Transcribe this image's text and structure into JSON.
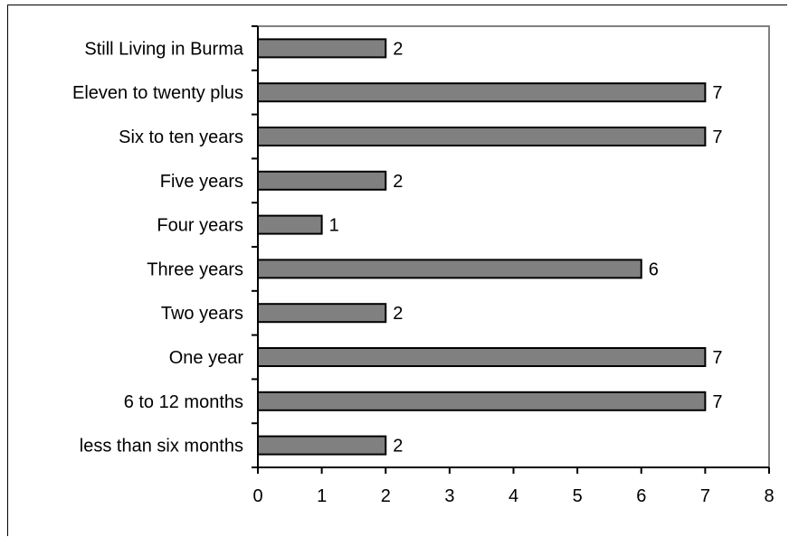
{
  "chart_data": {
    "type": "bar",
    "orientation": "horizontal",
    "title": "",
    "xlabel": "",
    "ylabel": "",
    "categories": [
      "Still Living in Burma",
      "Eleven to twenty plus",
      "Six to ten years",
      "Five years",
      "Four years",
      "Three years",
      "Two years",
      "One year",
      "6 to 12 months",
      "less than six months"
    ],
    "values": [
      2,
      7,
      7,
      2,
      1,
      6,
      2,
      7,
      7,
      2
    ],
    "xlim": [
      0,
      8
    ],
    "xticks": [
      "0",
      "1",
      "2",
      "3",
      "4",
      "5",
      "6",
      "7",
      "8"
    ],
    "data_labels": true,
    "grid": false,
    "legend": "none",
    "bar_color": "#808080",
    "bar_edge_color": "#000000",
    "plot_border_color": "#808080"
  }
}
